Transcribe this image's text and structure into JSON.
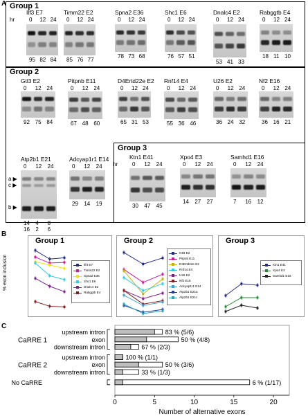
{
  "panels": {
    "a": "A",
    "b": "B",
    "c": "C"
  },
  "hr_label": "hr",
  "timepoints": [
    "0",
    "12",
    "24"
  ],
  "group1": {
    "title": "Group 1",
    "gels": [
      {
        "name": "Ilf3 E7",
        "values": [
          "95",
          "82",
          "84"
        ]
      },
      {
        "name": "Timm22 E2",
        "values": [
          "85",
          "76",
          "77"
        ]
      },
      {
        "name": "Spna2 E36",
        "values": [
          "78",
          "73",
          "68"
        ]
      },
      {
        "name": "Shc1 E6",
        "values": [
          "76",
          "57",
          "51"
        ]
      },
      {
        "name": "Dnalc4 E2",
        "values": [
          "53",
          "41",
          "33"
        ]
      },
      {
        "name": "Rabggtb E4",
        "values": [
          "18",
          "11",
          "10"
        ]
      }
    ]
  },
  "group2": {
    "title": "Group 2",
    "gels": [
      {
        "name": "Gtl3 E2",
        "values": [
          "92",
          "75",
          "84"
        ]
      },
      {
        "name": "Pitpnb E11",
        "values": [
          "67",
          "48",
          "60"
        ]
      },
      {
        "name": "D4Ertd22e E2",
        "values": [
          "65",
          "31",
          "53"
        ]
      },
      {
        "name": "Rnf14 E4",
        "values": [
          "55",
          "36",
          "46"
        ]
      },
      {
        "name": "U26 E2",
        "values": [
          "36",
          "24",
          "32"
        ]
      },
      {
        "name": "Nf2 E16",
        "values": [
          "36",
          "16",
          "21"
        ]
      },
      {
        "name": "Atp2b1 E21",
        "values": [
          "14",
          "4",
          "8"
        ],
        "values2": [
          "16",
          "2",
          "6"
        ],
        "markers": [
          "a",
          "c",
          "b"
        ]
      },
      {
        "name": "Adcyap1r1 E14",
        "values": [
          "29",
          "14",
          "19"
        ]
      }
    ]
  },
  "group3": {
    "title": "Group 3",
    "gels": [
      {
        "name": "Ktn1 E41",
        "values": [
          "30",
          "47",
          "45"
        ]
      },
      {
        "name": "Xpo4 E3",
        "values": [
          "14",
          "27",
          "27"
        ]
      },
      {
        "name": "Samhd1 E16",
        "values": [
          "7",
          "16",
          "12"
        ]
      }
    ]
  },
  "panel_b": {
    "ylabel": "% exon inclusion",
    "charts": [
      {
        "title": "Group 1",
        "series": [
          {
            "name": "Ilf3 E7",
            "color": "#1f2b8c",
            "marker": "diamond",
            "values": [
              95,
              82,
              84
            ]
          },
          {
            "name": "Timm22 E2",
            "color": "#d6139b",
            "marker": "square",
            "values": [
              85,
              76,
              77
            ]
          },
          {
            "name": "Spna2 E36",
            "color": "#f2e600",
            "marker": "triangle",
            "values": [
              78,
              73,
              68
            ]
          },
          {
            "name": "Shc1 E6",
            "color": "#25d0e8",
            "marker": "x",
            "values": [
              76,
              57,
              51
            ]
          },
          {
            "name": "Dnalc4 E2",
            "color": "#7a1f8c",
            "marker": "x",
            "values": [
              53,
              41,
              33
            ]
          },
          {
            "name": "Rabggtb E4",
            "color": "#8b1a1a",
            "marker": "circle",
            "values": [
              18,
              11,
              10
            ]
          }
        ]
      },
      {
        "title": "Group 2",
        "series": [
          {
            "name": "Gtl3 E2",
            "color": "#1f2b8c",
            "marker": "diamond",
            "values": [
              92,
              75,
              84
            ]
          },
          {
            "name": "Pitpnb E11",
            "color": "#d6139b",
            "marker": "square",
            "values": [
              67,
              48,
              60
            ]
          },
          {
            "name": "D4Ertd22e E2",
            "color": "#c8b400",
            "marker": "triangle",
            "values": [
              65,
              31,
              53
            ]
          },
          {
            "name": "Rnf14 E4",
            "color": "#25d0e8",
            "marker": "x",
            "values": [
              55,
              36,
              46
            ]
          },
          {
            "name": "U26 E2",
            "color": "#7a1f8c",
            "marker": "x",
            "values": [
              36,
              24,
              32
            ]
          },
          {
            "name": "Nf2 E16",
            "color": "#8b1a1a",
            "marker": "circle",
            "values": [
              36,
              16,
              21
            ]
          },
          {
            "name": "Adcyap1r1 E14",
            "color": "#3aa0d8",
            "marker": "plus",
            "values": [
              29,
              14,
              19
            ]
          },
          {
            "name": "Atp2b1 E21a",
            "color": "#1f3aa0",
            "marker": "dash",
            "values": [
              14,
              4,
              8
            ]
          },
          {
            "name": "Atp2b1 E21c",
            "color": "#2aa5b5",
            "marker": "dash",
            "values": [
              16,
              2,
              6
            ]
          }
        ]
      },
      {
        "title": "Group 3",
        "series": [
          {
            "name": "Ktn1 E41",
            "color": "#1f2b8c",
            "marker": "diamond",
            "values": [
              30,
              47,
              45
            ]
          },
          {
            "name": "Xpo4 E3",
            "color": "#1f8c2b",
            "marker": "square",
            "values": [
              14,
              27,
              27
            ]
          },
          {
            "name": "Samhd1 E16",
            "color": "#222222",
            "marker": "triangle",
            "values": [
              7,
              16,
              12
            ]
          }
        ]
      }
    ]
  },
  "chart_data": {
    "type": "bar",
    "orientation": "horizontal",
    "categories": [
      "upstream intron",
      "exon",
      "downstream intron",
      "upstream intron",
      "exon",
      "downstream intron",
      "No CaRRE"
    ],
    "groups": [
      {
        "label": "CaRRE 1",
        "rows": [
          0,
          1,
          2
        ]
      },
      {
        "label": "CaRRE 2",
        "rows": [
          3,
          4,
          5
        ]
      }
    ],
    "series": [
      {
        "values": [
          5,
          4,
          2,
          1,
          3,
          1,
          1
        ],
        "color": "#bfbfbf"
      },
      {
        "values": [
          6,
          8,
          3,
          1,
          6,
          3,
          17
        ],
        "color": "#ffffff"
      }
    ],
    "annotations": [
      "83 %  (5/6)",
      "50 %  (4/8)",
      "67 %  (2/3)",
      "100 %  (1/1)",
      "50 %  (3/6)",
      "33 %  (1/3)",
      "6 %  (1/17)"
    ],
    "xlabel": "Number of alternative exons",
    "xticks": [
      "0",
      "5",
      "10",
      "15",
      "20"
    ],
    "xlim": [
      0,
      22
    ]
  }
}
